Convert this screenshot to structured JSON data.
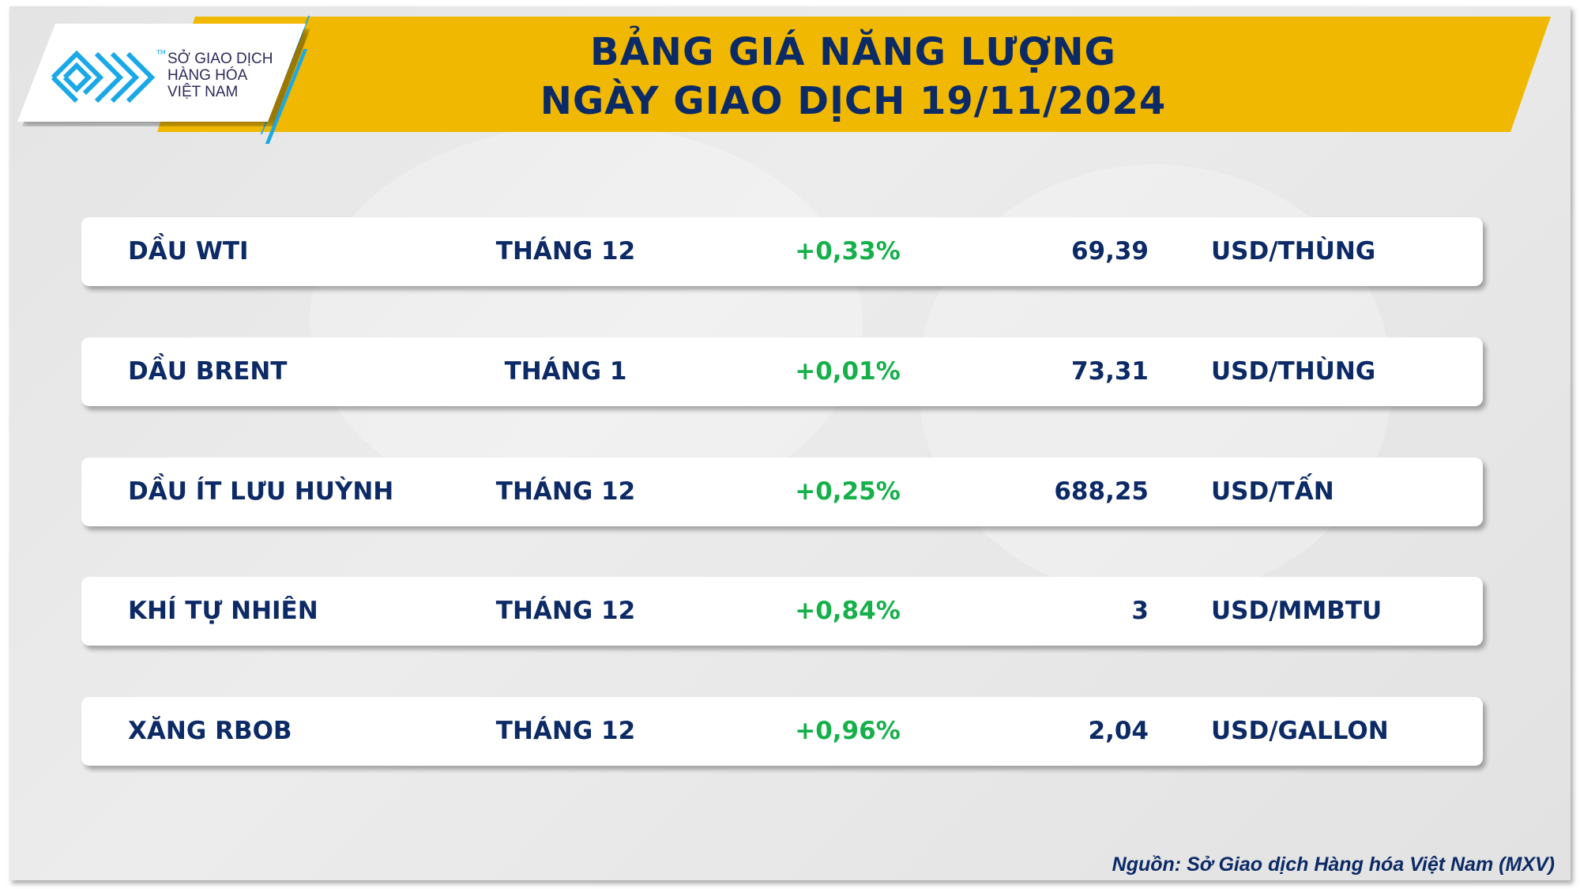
{
  "logo": {
    "lines": [
      "SỞ GIAO DỊCH",
      "HÀNG HÓA",
      "VIỆT NAM"
    ],
    "tm": "TM"
  },
  "header": {
    "title_line1": "BẢNG GIÁ NĂNG LƯỢNG",
    "title_line2": "NGÀY GIAO DỊCH 19/11/2024"
  },
  "rows": [
    {
      "name": "DẦU WTI",
      "month": "THÁNG 12",
      "change": "+0,33%",
      "price": "69,39",
      "unit": "USD/THÙNG"
    },
    {
      "name": "DẦU BRENT",
      "month": "THÁNG 1",
      "change": "+0,01%",
      "price": "73,31",
      "unit": "USD/THÙNG"
    },
    {
      "name": "DẦU ÍT LƯU HUỲNH",
      "month": "THÁNG 12",
      "change": "+0,25%",
      "price": "688,25",
      "unit": "USD/TẤN"
    },
    {
      "name": "KHÍ TỰ NHIÊN",
      "month": "THÁNG 12",
      "change": "+0,84%",
      "price": "3",
      "unit": "USD/MMBTU"
    },
    {
      "name": "XĂNG RBOB",
      "month": "THÁNG 12",
      "change": "+0,96%",
      "price": "2,04",
      "unit": "USD/GALLON"
    }
  ],
  "source": "Nguồn: Sở Giao dịch Hàng hóa Việt Nam (MXV)",
  "colors": {
    "banner": "#f0b800",
    "text": "#0c2a66",
    "positive": "#16b04a",
    "logo_accent": "#1aa8e6"
  }
}
